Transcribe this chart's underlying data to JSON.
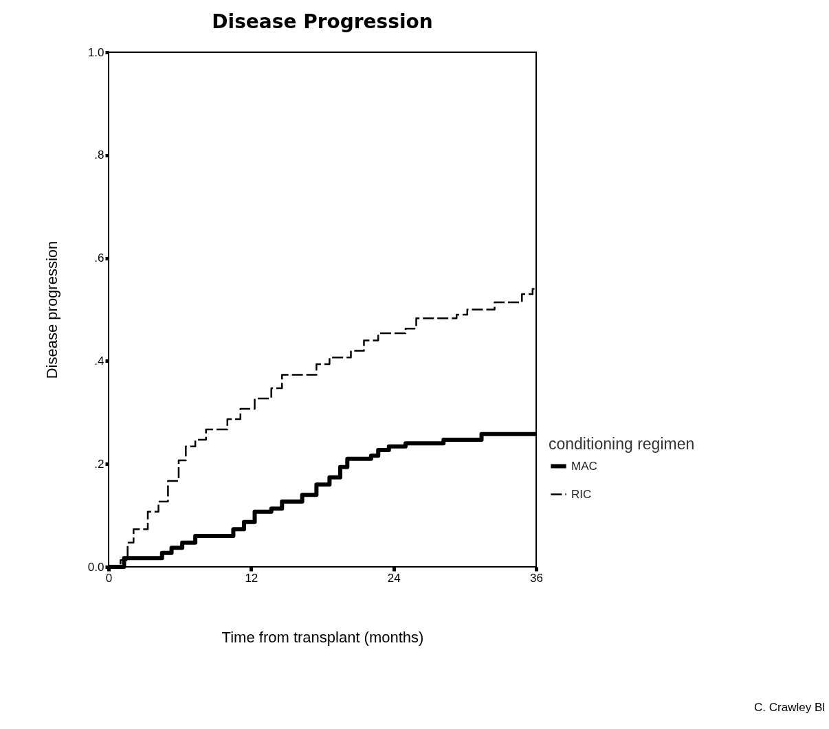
{
  "chart_data": {
    "type": "step",
    "title": "Disease Progression",
    "xlabel": "Time from transplant (months)",
    "ylabel": "Disease progression",
    "legend_title": "conditioning regimen",
    "legend": "right",
    "xlim": [
      0,
      36
    ],
    "xticks": [
      0,
      12,
      24,
      36
    ],
    "ylim": [
      0,
      1
    ],
    "yticks": [
      {
        "value": 0,
        "label": "0.0"
      },
      {
        "value": 0.2,
        "label": ".2"
      },
      {
        "value": 0.4,
        "label": ".4"
      },
      {
        "value": 0.6,
        "label": ".6"
      },
      {
        "value": 0.8,
        "label": ".8"
      },
      {
        "value": 1,
        "label": "1.0"
      }
    ],
    "series": [
      {
        "name": "MAC",
        "color": "#000000",
        "line_style": "solid",
        "x": [
          0,
          1.3,
          4.5,
          5.3,
          6.2,
          7.3,
          10.5,
          11.4,
          12.3,
          13.7,
          14.6,
          16.3,
          17.5,
          18.6,
          19.5,
          20.1,
          22.1,
          22.7,
          23.6,
          25,
          28.2,
          31.4,
          36
        ],
        "values": [
          0,
          0.017,
          0.027,
          0.037,
          0.047,
          0.06,
          0.073,
          0.087,
          0.107,
          0.113,
          0.127,
          0.14,
          0.16,
          0.174,
          0.194,
          0.21,
          0.216,
          0.227,
          0.234,
          0.24,
          0.247,
          0.258,
          0.258
        ]
      },
      {
        "name": "RIC",
        "color": "#000000",
        "line_style": "dashed",
        "x": [
          0,
          1,
          1.6,
          2.1,
          3.3,
          4.2,
          5,
          5.9,
          6.5,
          7.3,
          8.2,
          10,
          11.1,
          12.3,
          13.7,
          14.6,
          17.5,
          18.6,
          20.4,
          21.5,
          22.7,
          25,
          25.9,
          29.3,
          30.2,
          32.5,
          34.8,
          35.7,
          36
        ],
        "values": [
          0,
          0.013,
          0.047,
          0.073,
          0.107,
          0.127,
          0.167,
          0.207,
          0.234,
          0.247,
          0.267,
          0.287,
          0.307,
          0.327,
          0.347,
          0.373,
          0.394,
          0.407,
          0.42,
          0.44,
          0.454,
          0.463,
          0.483,
          0.49,
          0.5,
          0.514,
          0.53,
          0.54,
          0.54
        ]
      }
    ],
    "annotations": [
      "C. Crawley Bl"
    ]
  }
}
